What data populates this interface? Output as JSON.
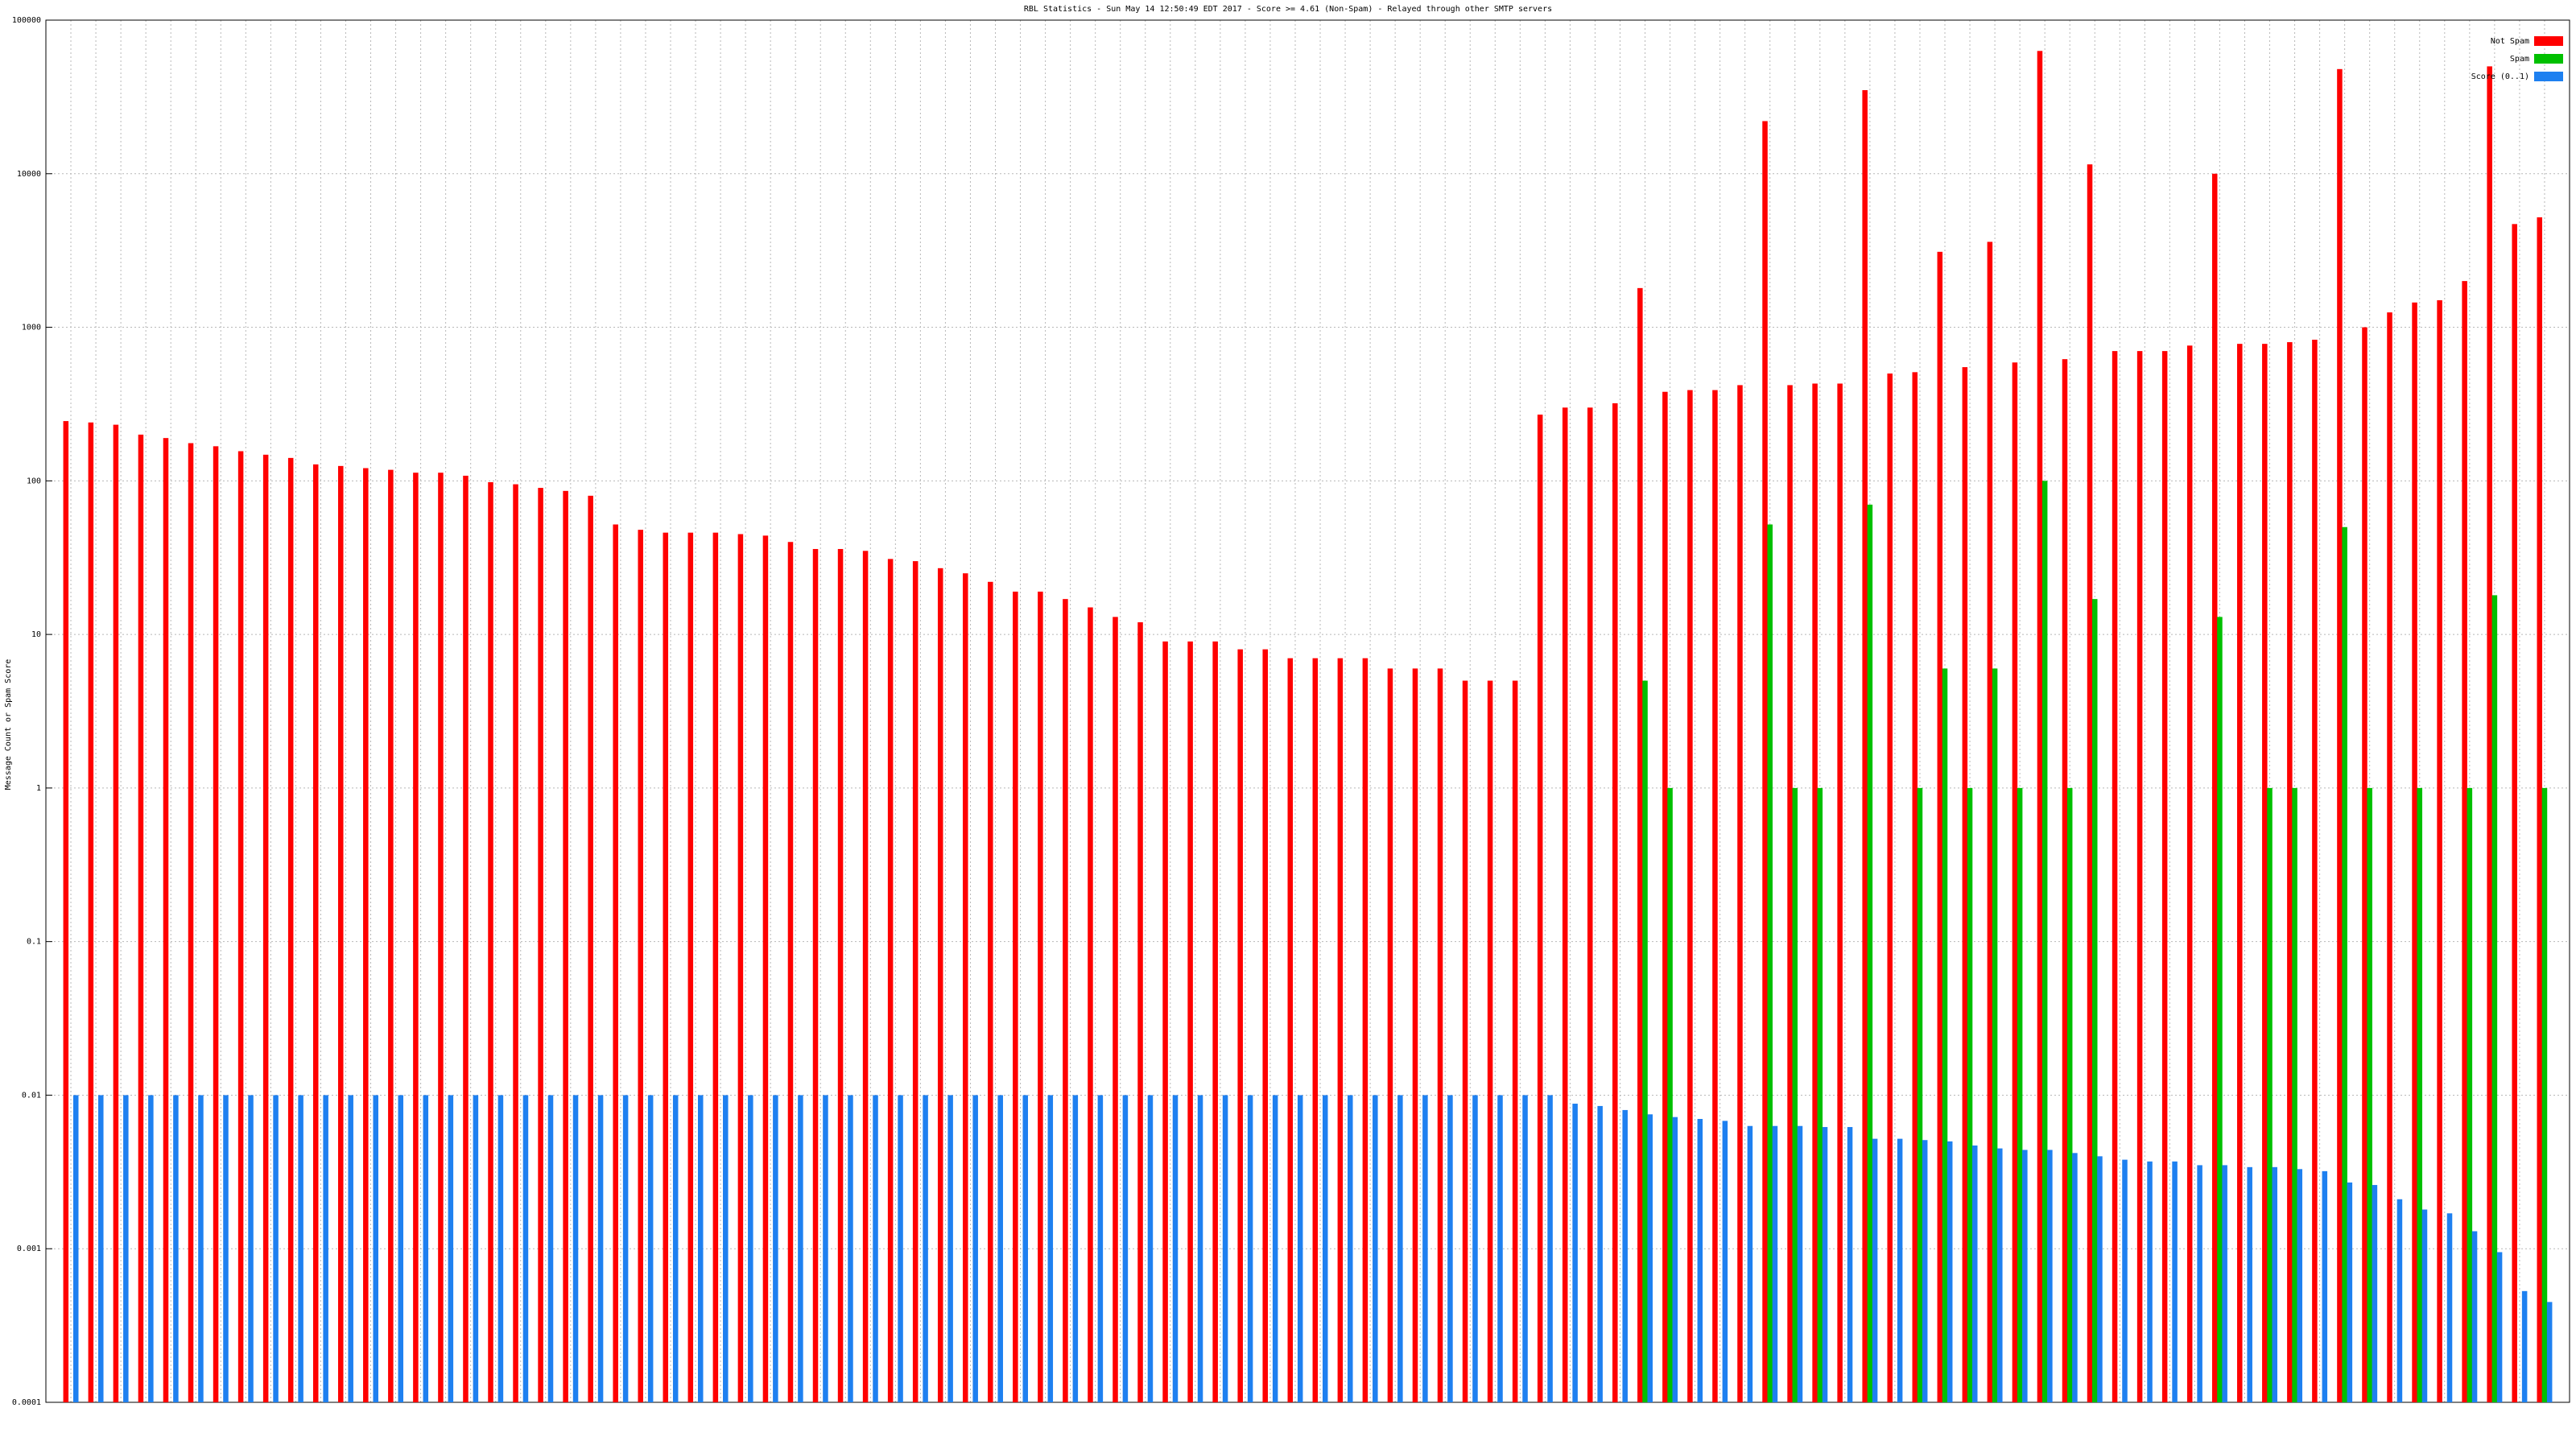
{
  "chart_data": {
    "type": "bar",
    "title": "RBL Statistics - Sun May 14 12:50:49 EDT 2017 - Score >= 4.61 (Non-Spam) - Relayed through other SMTP servers",
    "y_label": "Message Count or Spam Score",
    "ylog": true,
    "ylim": [
      0.0001,
      100000
    ],
    "yticks": [
      0.0001,
      0.001,
      0.01,
      0.1,
      1,
      10,
      100,
      1000,
      10000,
      100000
    ],
    "grid": true,
    "legend": "top-right",
    "categories": [
      null,
      null,
      null,
      null,
      null,
      null,
      null,
      null,
      null,
      null,
      null,
      null,
      null,
      null,
      null,
      null,
      null,
      null,
      null,
      null,
      null,
      null,
      null,
      null,
      null,
      null,
      null,
      null,
      null,
      null,
      null,
      null,
      null,
      null,
      null,
      null,
      null,
      null,
      null,
      null,
      null,
      null,
      null,
      null,
      null,
      null,
      null,
      null,
      null,
      null,
      null,
      null,
      null,
      null,
      null,
      null,
      null,
      null,
      null,
      null,
      null,
      null,
      null,
      null,
      null,
      null,
      null,
      null,
      null,
      null,
      null,
      null,
      null,
      null,
      null,
      null,
      null,
      null,
      null,
      null,
      null,
      null,
      null,
      null,
      null,
      null,
      null,
      null,
      null,
      null,
      null,
      null,
      null,
      null,
      null,
      null,
      null,
      null,
      null,
      null
    ],
    "series": [
      {
        "name": "Not Spam",
        "color": "#ff0000",
        "values": [
          245,
          240,
          232,
          200,
          190,
          176,
          168,
          156,
          148,
          141,
          128,
          125,
          121,
          118,
          113,
          113,
          108,
          98,
          95,
          90,
          86,
          80,
          52,
          48,
          46,
          46,
          46,
          45,
          44,
          40,
          36,
          36,
          35,
          31,
          30,
          27,
          25,
          22,
          19,
          19,
          17,
          15,
          13,
          12,
          9,
          9,
          9,
          8,
          8,
          7,
          7,
          7,
          7,
          6,
          6,
          6,
          5,
          5,
          5,
          270,
          300,
          300,
          320,
          1800,
          380,
          390,
          390,
          420,
          22000,
          420,
          430,
          430,
          35000,
          500,
          510,
          3100,
          550,
          3600,
          590,
          63000,
          620,
          11500,
          700,
          700,
          700,
          760,
          10000,
          780,
          780,
          800,
          830,
          48000,
          1000,
          1250,
          1450,
          1500,
          2000,
          50000,
          4700,
          5200
        ]
      },
      {
        "name": "Spam",
        "color": "#00c000",
        "values": [
          null,
          null,
          null,
          null,
          null,
          null,
          null,
          null,
          null,
          null,
          null,
          null,
          null,
          null,
          null,
          null,
          null,
          null,
          null,
          null,
          null,
          null,
          null,
          null,
          null,
          null,
          null,
          null,
          null,
          null,
          null,
          null,
          null,
          null,
          null,
          null,
          null,
          null,
          null,
          null,
          null,
          null,
          null,
          null,
          null,
          null,
          null,
          null,
          null,
          null,
          null,
          null,
          null,
          null,
          null,
          null,
          null,
          null,
          null,
          null,
          null,
          null,
          null,
          5,
          1,
          null,
          null,
          null,
          52,
          1,
          1,
          null,
          70,
          null,
          1,
          6,
          1,
          6,
          1,
          100,
          1,
          17,
          null,
          null,
          null,
          null,
          13,
          null,
          1,
          1,
          null,
          50,
          1,
          null,
          1,
          null,
          1,
          18,
          null,
          1
        ]
      },
      {
        "name": "Score (0..1)",
        "color": "#1e80f0",
        "values": [
          0.01,
          0.01,
          0.01,
          0.01,
          0.01,
          0.01,
          0.01,
          0.01,
          0.01,
          0.01,
          0.01,
          0.01,
          0.01,
          0.01,
          0.01,
          0.01,
          0.01,
          0.01,
          0.01,
          0.01,
          0.01,
          0.01,
          0.01,
          0.01,
          0.01,
          0.01,
          0.01,
          0.01,
          0.01,
          0.01,
          0.01,
          0.01,
          0.01,
          0.01,
          0.01,
          0.01,
          0.01,
          0.01,
          0.01,
          0.01,
          0.01,
          0.01,
          0.01,
          0.01,
          0.01,
          0.01,
          0.01,
          0.01,
          0.01,
          0.01,
          0.01,
          0.01,
          0.01,
          0.01,
          0.01,
          0.01,
          0.01,
          0.01,
          0.01,
          0.01,
          0.0088,
          0.0085,
          0.008,
          0.0075,
          0.0072,
          0.007,
          0.0068,
          0.0063,
          0.0063,
          0.0063,
          0.0062,
          0.0062,
          0.0052,
          0.0052,
          0.0051,
          0.005,
          0.0047,
          0.0045,
          0.0044,
          0.0044,
          0.0042,
          0.004,
          0.0038,
          0.0037,
          0.0037,
          0.0035,
          0.0035,
          0.0034,
          0.0034,
          0.0033,
          0.0032,
          0.0027,
          0.0026,
          0.0021,
          0.0018,
          0.0017,
          0.0013,
          0.00095,
          0.00053,
          0.00045
        ]
      }
    ]
  }
}
